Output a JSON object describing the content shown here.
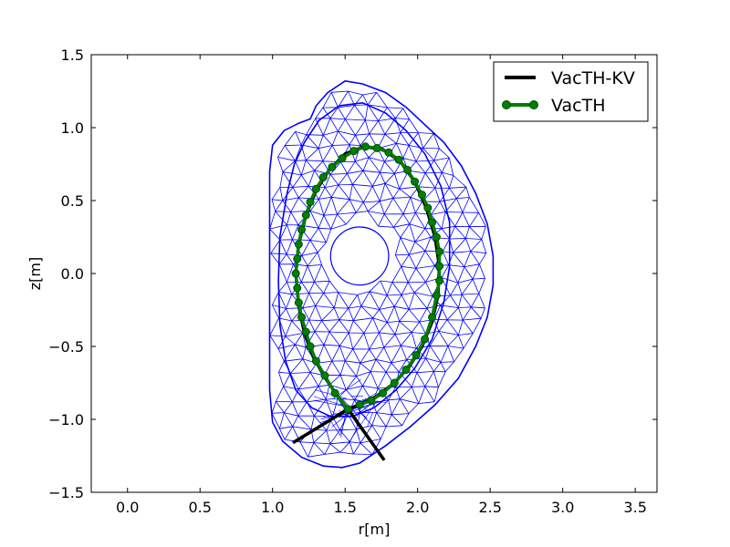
{
  "chart_data": {
    "type": "line",
    "xlabel": "r[m]",
    "ylabel": "z[m]",
    "xlim": [
      -0.25,
      3.65
    ],
    "ylim": [
      -1.5,
      1.5
    ],
    "xticks": [
      0.0,
      0.5,
      1.0,
      1.5,
      2.0,
      2.5,
      3.0,
      3.5
    ],
    "yticks": [
      -1.5,
      -1.0,
      -0.5,
      0.0,
      0.5,
      1.0,
      1.5
    ],
    "xtick_labels": [
      "0.0",
      "0.5",
      "1.0",
      "1.5",
      "2.0",
      "2.5",
      "3.0",
      "3.5"
    ],
    "ytick_labels": [
      "−1.5",
      "−1.0",
      "−0.5",
      "0.0",
      "0.5",
      "1.0",
      "1.5"
    ],
    "grid": false,
    "legend_position": "top-right",
    "mesh": {
      "color": "#0000ff",
      "outer_boundary": [
        [
          1.26,
          1.06
        ],
        [
          1.3,
          1.15
        ],
        [
          1.38,
          1.24
        ],
        [
          1.5,
          1.32
        ],
        [
          1.62,
          1.3
        ],
        [
          1.78,
          1.24
        ],
        [
          1.92,
          1.14
        ],
        [
          2.05,
          1.02
        ],
        [
          2.18,
          0.9
        ],
        [
          2.3,
          0.74
        ],
        [
          2.4,
          0.55
        ],
        [
          2.48,
          0.34
        ],
        [
          2.52,
          0.12
        ],
        [
          2.52,
          -0.08
        ],
        [
          2.48,
          -0.3
        ],
        [
          2.4,
          -0.5
        ],
        [
          2.28,
          -0.72
        ],
        [
          2.12,
          -0.9
        ],
        [
          1.95,
          -1.05
        ],
        [
          1.78,
          -1.18
        ],
        [
          1.6,
          -1.3
        ],
        [
          1.48,
          -1.33
        ],
        [
          1.35,
          -1.32
        ],
        [
          1.2,
          -1.26
        ],
        [
          1.07,
          -1.15
        ],
        [
          1.0,
          -1.02
        ],
        [
          0.98,
          -0.8
        ],
        [
          0.98,
          -0.5
        ],
        [
          0.98,
          -0.2
        ],
        [
          0.98,
          0.1
        ],
        [
          0.98,
          0.4
        ],
        [
          0.98,
          0.7
        ],
        [
          1.0,
          0.88
        ],
        [
          1.08,
          0.98
        ],
        [
          1.18,
          1.03
        ]
      ],
      "hole_center": [
        1.6,
        0.12
      ],
      "hole_radius": 0.2,
      "inner_boundary": [
        [
          1.22,
          0.9
        ],
        [
          1.32,
          1.05
        ],
        [
          1.46,
          1.15
        ],
        [
          1.62,
          1.17
        ],
        [
          1.78,
          1.1
        ],
        [
          1.92,
          0.98
        ],
        [
          2.05,
          0.82
        ],
        [
          2.16,
          0.6
        ],
        [
          2.22,
          0.35
        ],
        [
          2.22,
          0.05
        ],
        [
          2.18,
          -0.2
        ],
        [
          2.1,
          -0.45
        ],
        [
          1.98,
          -0.65
        ],
        [
          1.85,
          -0.8
        ],
        [
          1.7,
          -0.92
        ],
        [
          1.55,
          -0.98
        ],
        [
          1.4,
          -0.98
        ],
        [
          1.27,
          -0.92
        ],
        [
          1.16,
          -0.8
        ],
        [
          1.09,
          -0.6
        ],
        [
          1.05,
          -0.35
        ],
        [
          1.04,
          -0.05
        ],
        [
          1.05,
          0.25
        ],
        [
          1.1,
          0.55
        ],
        [
          1.15,
          0.75
        ]
      ]
    },
    "series": [
      {
        "name": "VacTH-KV",
        "color": "#000000",
        "marker": "none",
        "segments": [
          [
            [
              1.52,
              -0.93
            ],
            [
              1.44,
              -0.83
            ],
            [
              1.36,
              -0.71
            ],
            [
              1.28,
              -0.57
            ],
            [
              1.22,
              -0.41
            ],
            [
              1.18,
              -0.22
            ],
            [
              1.16,
              0.0
            ],
            [
              1.18,
              0.2
            ],
            [
              1.23,
              0.4
            ],
            [
              1.3,
              0.57
            ],
            [
              1.39,
              0.71
            ],
            [
              1.5,
              0.82
            ],
            [
              1.63,
              0.87
            ],
            [
              1.76,
              0.85
            ],
            [
              1.88,
              0.77
            ],
            [
              1.98,
              0.63
            ],
            [
              2.06,
              0.45
            ],
            [
              2.12,
              0.25
            ],
            [
              2.15,
              0.05
            ],
            [
              2.14,
              -0.15
            ],
            [
              2.1,
              -0.33
            ],
            [
              2.03,
              -0.5
            ],
            [
              1.94,
              -0.64
            ],
            [
              1.84,
              -0.75
            ],
            [
              1.72,
              -0.84
            ],
            [
              1.62,
              -0.89
            ],
            [
              1.52,
              -0.93
            ]
          ],
          [
            [
              1.52,
              -0.93
            ],
            [
              1.14,
              -1.16
            ]
          ],
          [
            [
              1.52,
              -0.93
            ],
            [
              1.77,
              -1.28
            ]
          ]
        ]
      },
      {
        "name": "VacTH",
        "color": "#008000",
        "marker": "circle",
        "points": [
          [
            1.52,
            -0.93
          ],
          [
            1.43,
            -0.82
          ],
          [
            1.36,
            -0.7
          ],
          [
            1.3,
            -0.6
          ],
          [
            1.26,
            -0.5
          ],
          [
            1.23,
            -0.4
          ],
          [
            1.2,
            -0.3
          ],
          [
            1.18,
            -0.2
          ],
          [
            1.17,
            -0.1
          ],
          [
            1.16,
            0.0
          ],
          [
            1.17,
            0.1
          ],
          [
            1.18,
            0.2
          ],
          [
            1.2,
            0.3
          ],
          [
            1.23,
            0.4
          ],
          [
            1.26,
            0.49
          ],
          [
            1.3,
            0.58
          ],
          [
            1.35,
            0.66
          ],
          [
            1.41,
            0.73
          ],
          [
            1.48,
            0.79
          ],
          [
            1.56,
            0.84
          ],
          [
            1.64,
            0.87
          ],
          [
            1.72,
            0.86
          ],
          [
            1.8,
            0.83
          ],
          [
            1.87,
            0.78
          ],
          [
            1.93,
            0.71
          ],
          [
            1.98,
            0.63
          ],
          [
            2.03,
            0.54
          ],
          [
            2.07,
            0.45
          ],
          [
            2.1,
            0.35
          ],
          [
            2.13,
            0.25
          ],
          [
            2.15,
            0.15
          ],
          [
            2.15,
            0.05
          ],
          [
            2.15,
            -0.05
          ],
          [
            2.13,
            -0.15
          ],
          [
            2.1,
            -0.3
          ],
          [
            2.05,
            -0.45
          ],
          [
            1.99,
            -0.56
          ],
          [
            1.92,
            -0.66
          ],
          [
            1.84,
            -0.75
          ],
          [
            1.76,
            -0.82
          ],
          [
            1.68,
            -0.87
          ],
          [
            1.6,
            -0.9
          ]
        ]
      }
    ]
  }
}
